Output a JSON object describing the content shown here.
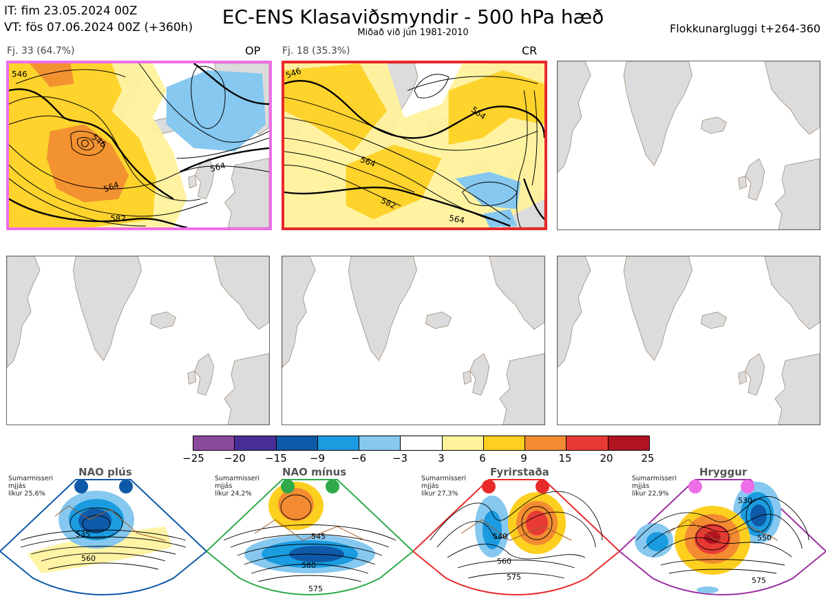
{
  "header": {
    "init_line": "IT: fim 23.05.2024 00Z",
    "valid_line": "VT: fös 07.06.2024 00Z  (+360h)",
    "title": "EC-ENS Klasaviðsmyndir - 500 hPa hæð",
    "subtitle": "Miðað við jún 1981-2010",
    "window_label": "Flokkunargluggi t+264-360"
  },
  "panels": [
    {
      "label": "Fj. 33 (64.7%)",
      "tag": "OP",
      "border_color": "#ee6ee8"
    },
    {
      "label": "Fj. 18 (35.3%)",
      "tag": "CR",
      "border_color": "#e8282a"
    },
    {
      "label": "",
      "tag": "",
      "border_color": "#666666"
    },
    {
      "label": "",
      "tag": "",
      "border_color": "#666666"
    },
    {
      "label": "",
      "tag": "",
      "border_color": "#666666"
    },
    {
      "label": "",
      "tag": "",
      "border_color": "#666666"
    }
  ],
  "contour_labels": {
    "panel1": [
      "546",
      "546",
      "564",
      "564",
      "582"
    ],
    "panel2": [
      "546",
      "564",
      "564",
      "582",
      "564"
    ]
  },
  "colorbar": {
    "ticks": [
      "−25",
      "−20",
      "−15",
      "−9",
      "−6",
      "−3",
      "3",
      "6",
      "9",
      "15",
      "20",
      "25"
    ],
    "colors": [
      "#8c4a9e",
      "#472f96",
      "#0f5aa8",
      "#1b9be0",
      "#86c8ef",
      "#ffffff",
      "#fff29a",
      "#fdcf1f",
      "#f28b31",
      "#e83a34",
      "#b01421"
    ]
  },
  "regimes": [
    {
      "title": "NAO plús",
      "info": [
        "Sumarmisseri",
        "mjjás",
        "líkur 25,6%"
      ],
      "color": "#0d58a8",
      "labels": [
        "535",
        "560"
      ]
    },
    {
      "title": "NAO mínus",
      "info": [
        "Sumarmisseri",
        "mjjás",
        "líkur 24,2%"
      ],
      "color": "#2eaa4a",
      "labels": [
        "545",
        "560",
        "575"
      ]
    },
    {
      "title": "Fyrirstaða",
      "info": [
        "Sumarmisseri",
        "mjjás",
        "líkur 27,3%"
      ],
      "color": "#e82a2a",
      "labels": [
        "540",
        "560",
        "575"
      ]
    },
    {
      "title": "Hryggur",
      "info": [
        "Sumarmisseri",
        "mjjás",
        "líkur 22,9%"
      ],
      "color": "#9a2fa0",
      "labels": [
        "530",
        "550",
        "575"
      ]
    }
  ],
  "chart_data": {
    "type": "heatmap",
    "title": "EC-ENS Klasaviðsmyndir - 500 hPa hæð",
    "subtitle": "Miðað við jún 1981-2010",
    "colorbar_levels": [
      -25,
      -20,
      -15,
      -9,
      -6,
      -3,
      3,
      6,
      9,
      15,
      20,
      25
    ],
    "clusters": [
      {
        "label": "Fj. 33 (64.7%)",
        "tag": "OP",
        "members": 33,
        "percent": 64.7,
        "contours_labeled": [
          546,
          564,
          582
        ]
      },
      {
        "label": "Fj. 18 (35.3%)",
        "tag": "CR",
        "members": 18,
        "percent": 35.3,
        "contours_labeled": [
          546,
          564,
          582
        ]
      }
    ],
    "climatological_regimes": [
      {
        "name": "NAO plús",
        "probability_percent": 25.6
      },
      {
        "name": "NAO mínus",
        "probability_percent": 24.2
      },
      {
        "name": "Fyrirstaða",
        "probability_percent": 27.3
      },
      {
        "name": "Hryggur",
        "probability_percent": 22.9
      }
    ]
  }
}
